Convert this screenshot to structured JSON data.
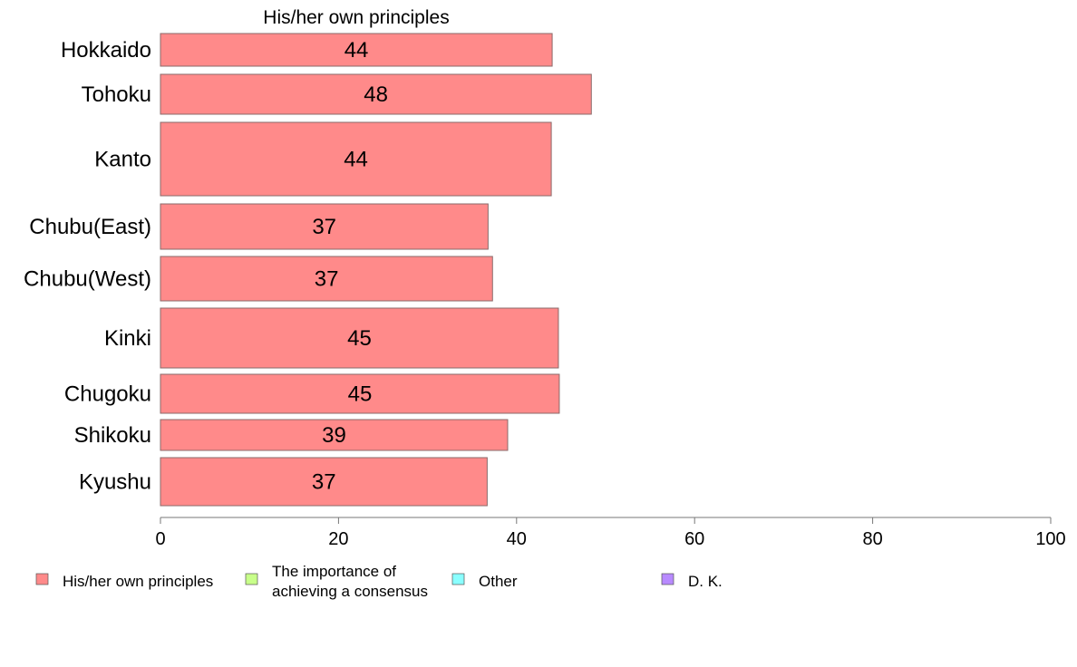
{
  "chart_data": {
    "type": "bar",
    "orientation": "horizontal",
    "title": "His/her own principles",
    "categories": [
      "Hokkaido",
      "Tohoku",
      "Kanto",
      "Chubu(East)",
      "Chubu(West)",
      "Kinki",
      "Chugoku",
      "Shikoku",
      "Kyushu"
    ],
    "series": [
      {
        "name": "His/her own principles",
        "color": "#ff8a8a",
        "values": [
          44,
          48,
          44,
          37,
          37,
          45,
          45,
          39,
          37
        ],
        "plot_values": [
          44.0,
          48.4,
          43.9,
          36.8,
          37.3,
          44.7,
          44.8,
          39.0,
          36.7
        ],
        "labels": [
          "44",
          "48",
          "44",
          "37",
          "37",
          "45",
          "45",
          "39",
          "37"
        ]
      }
    ],
    "xlim": [
      0,
      100
    ],
    "xticks": [
      "0",
      "20",
      "40",
      "60",
      "80",
      "100"
    ],
    "grid": false,
    "legend": {
      "position": "bottom",
      "entries": [
        {
          "label": [
            "His/her own principles"
          ],
          "color": "#ff8a8a"
        },
        {
          "label": [
            "The importance of",
            "achieving a consensus"
          ],
          "color": "#c8ff8a"
        },
        {
          "label": [
            "Other"
          ],
          "color": "#8affff"
        },
        {
          "label": [
            "D. K."
          ],
          "color": "#b88aff"
        }
      ]
    }
  }
}
